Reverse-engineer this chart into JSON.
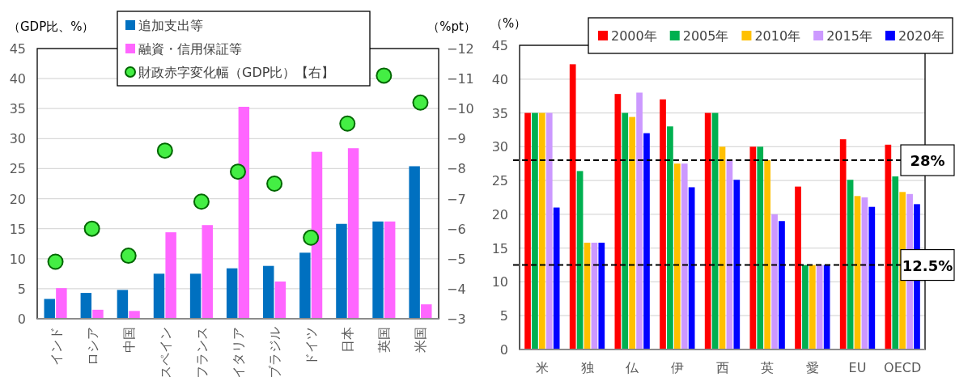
{
  "chart_data": [
    {
      "type": "bar",
      "categories": [
        "インド",
        "ロシア",
        "中国",
        "スペイン",
        "フランス",
        "イタリア",
        "ブラジル",
        "ドイツ",
        "日本",
        "英国",
        "米国"
      ],
      "series": [
        {
          "name": "追加支出等",
          "color": "#0070c0",
          "values": [
            3.3,
            4.3,
            4.8,
            7.5,
            7.5,
            8.4,
            8.8,
            11.0,
            15.8,
            16.2,
            25.4
          ]
        },
        {
          "name": "融資・信用保証等",
          "color": "#ff66ff",
          "values": [
            5.1,
            1.5,
            1.3,
            14.4,
            15.6,
            35.3,
            6.2,
            27.8,
            28.4,
            16.2,
            2.4
          ]
        },
        {
          "name": "財政赤字変化幅（GDP比）【右】",
          "type": "scatter",
          "axis": "y2",
          "marker": "circle",
          "color": "#44ee44",
          "values": [
            -4.9,
            -6.0,
            -5.1,
            -8.6,
            -6.9,
            -7.9,
            -7.5,
            -5.7,
            -9.5,
            -11.1,
            -10.2
          ]
        }
      ],
      "ylabel": "（GDP比、%）",
      "y2label": "（%pt）",
      "ylim": [
        0,
        45
      ],
      "yticks": [
        0,
        5,
        10,
        15,
        20,
        25,
        30,
        35,
        40,
        45
      ],
      "y2lim": [
        -3,
        -12
      ],
      "y2ticks": [
        -3,
        -4,
        -5,
        -6,
        -7,
        -8,
        -9,
        -10,
        -11,
        -12
      ],
      "grid": "y",
      "legend": "top"
    },
    {
      "type": "bar",
      "categories": [
        "米",
        "独",
        "仏",
        "伊",
        "西",
        "英",
        "愛",
        "EU",
        "OECD"
      ],
      "series": [
        {
          "name": "2000年",
          "color": "#ff0000",
          "values": [
            35,
            42.2,
            37.8,
            37,
            35,
            30,
            24.1,
            31.1,
            30.3
          ]
        },
        {
          "name": "2005年",
          "color": "#00b050",
          "values": [
            35,
            26.4,
            35,
            33,
            35,
            30,
            12.5,
            25.1,
            25.6
          ]
        },
        {
          "name": "2010年",
          "color": "#ffc000",
          "values": [
            35,
            15.8,
            34.4,
            27.5,
            30,
            28,
            12.5,
            22.7,
            23.3
          ]
        },
        {
          "name": "2015年",
          "color": "#cc99ff",
          "values": [
            35,
            15.8,
            38,
            27.5,
            28.1,
            20,
            12.5,
            22.5,
            23.0
          ]
        },
        {
          "name": "2020年",
          "color": "#0000ff",
          "values": [
            21,
            15.8,
            32,
            24,
            25.1,
            19,
            12.5,
            21.1,
            21.5
          ]
        }
      ],
      "ylabel": "（%）",
      "ylim": [
        0,
        45
      ],
      "yticks": [
        0,
        5,
        10,
        15,
        20,
        25,
        30,
        35,
        40,
        45
      ],
      "ref_lines": [
        {
          "axis": "y",
          "value": 28,
          "label": "28%",
          "line_style": "dashed",
          "color": "#000000"
        },
        {
          "axis": "y",
          "value": 12.5,
          "label": "12.5%",
          "line_style": "dashed",
          "color": "#000000"
        }
      ],
      "grid": "y",
      "legend": "top"
    }
  ]
}
